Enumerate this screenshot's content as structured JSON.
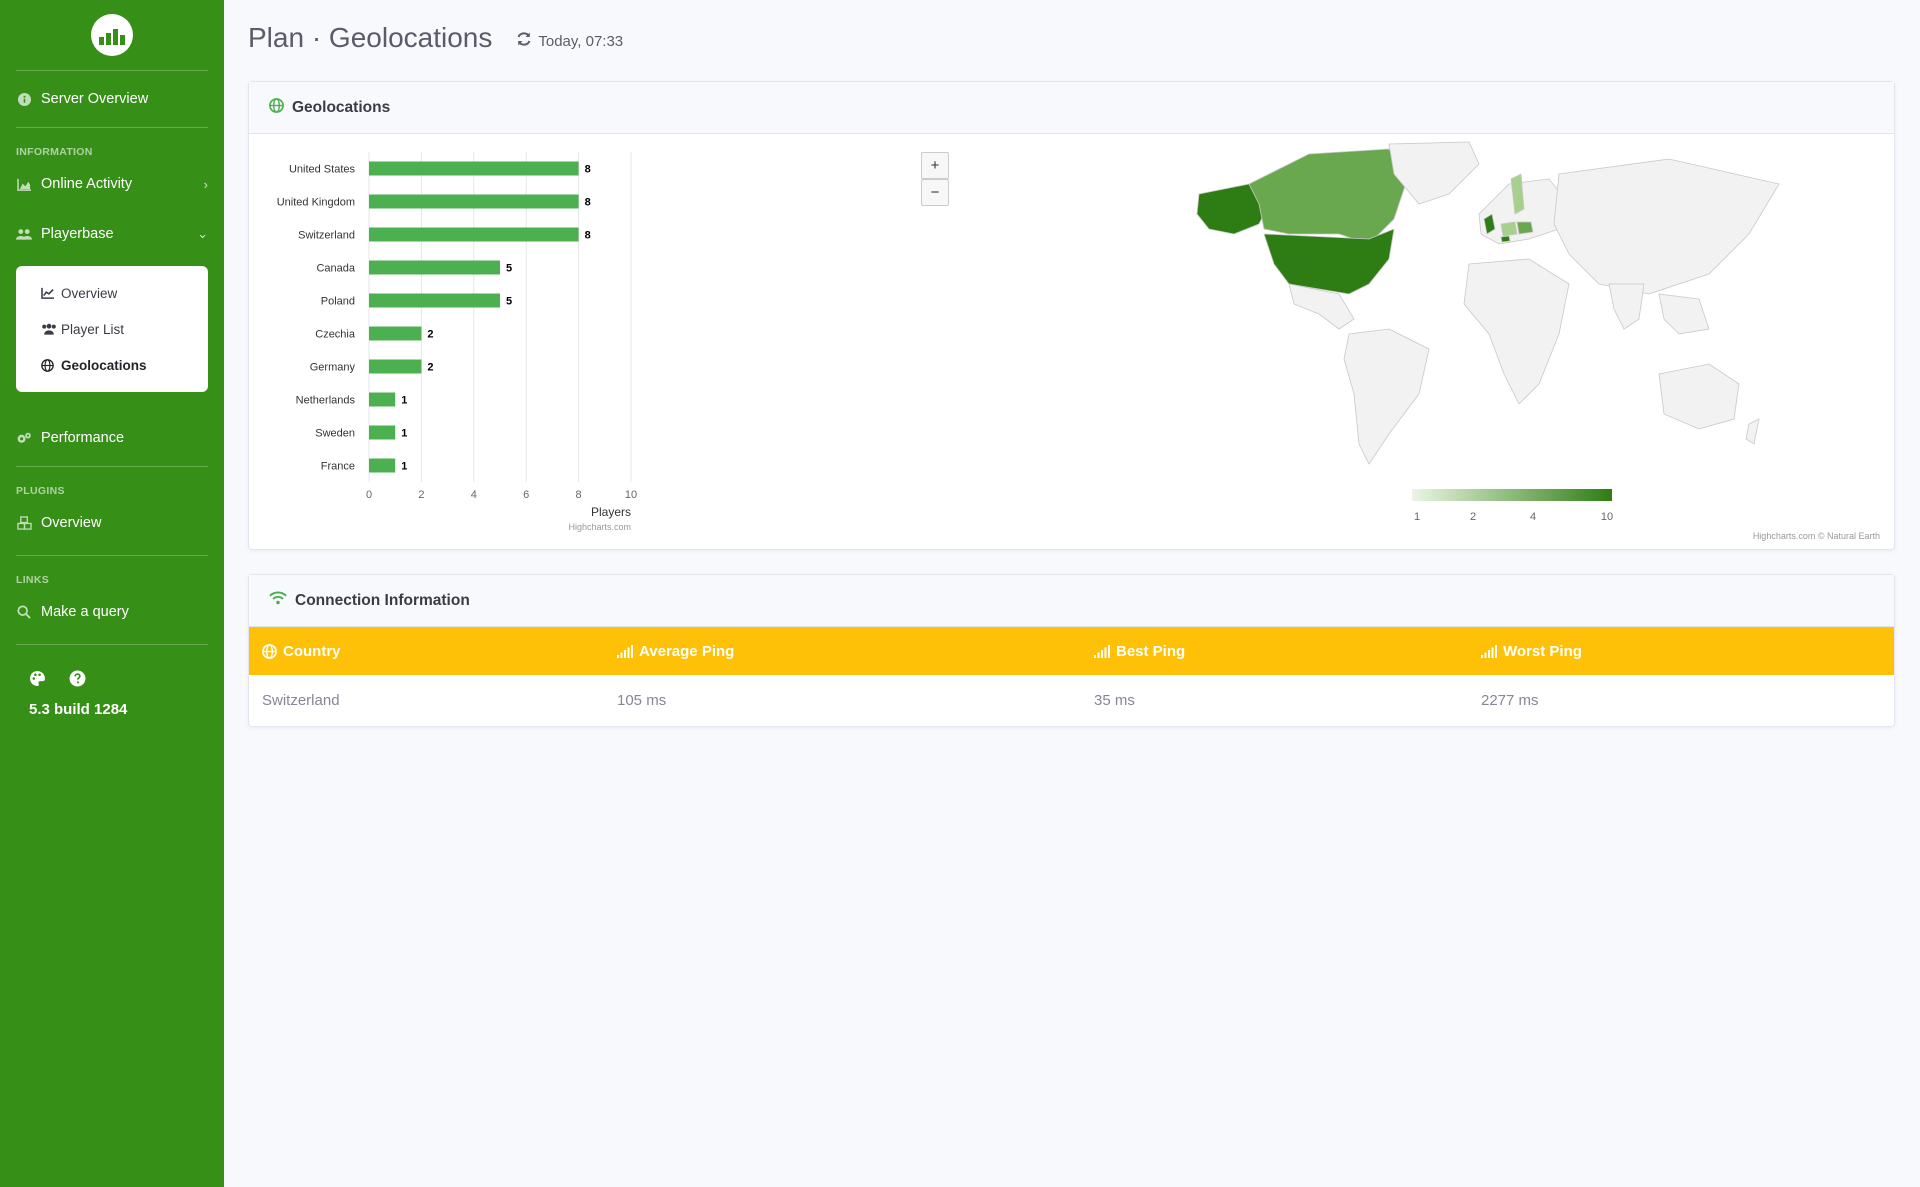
{
  "sidebar": {
    "items_top": [
      {
        "label": "Server Overview",
        "icon": "info-circle-icon"
      }
    ],
    "section_information": "INFORMATION",
    "online_activity": "Online Activity",
    "playerbase": "Playerbase",
    "playerbase_sub": [
      {
        "label": "Overview",
        "icon": "chart-line-icon"
      },
      {
        "label": "Player List",
        "icon": "users-icon"
      },
      {
        "label": "Geolocations",
        "icon": "globe-icon"
      }
    ],
    "performance": "Performance",
    "section_plugins": "PLUGINS",
    "plugins_overview": "Overview",
    "section_links": "LINKS",
    "make_query": "Make a query",
    "version": "5.3 build 1284"
  },
  "header": {
    "title": "Plan · Geolocations",
    "refresh_text": "Today, 07:33"
  },
  "geo_card": {
    "title": "Geolocations",
    "zoom_in": "+",
    "zoom_out": "−",
    "credit_bar": "Highcharts.com",
    "credit_map": "Highcharts.com © Natural Earth",
    "legend_ticks": [
      "1",
      "2",
      "4",
      "10"
    ]
  },
  "chart_data": {
    "type": "bar",
    "categories": [
      "United States",
      "United Kingdom",
      "Switzerland",
      "Canada",
      "Poland",
      "Czechia",
      "Germany",
      "Netherlands",
      "Sweden",
      "France"
    ],
    "values": [
      8,
      8,
      8,
      5,
      5,
      2,
      2,
      1,
      1,
      1
    ],
    "xlabel": "Players",
    "xlim": [
      0,
      10
    ],
    "xticks": [
      0,
      2,
      4,
      6,
      8,
      10
    ],
    "color": "#4caf50",
    "grid": true
  },
  "map_colors": {
    "max": "#2e7d14",
    "mid": "#6aa84f",
    "low": "#a8d08d",
    "empty": "#f2f2f2"
  },
  "connection": {
    "title": "Connection Information",
    "headers": [
      "Country",
      "Average Ping",
      "Best Ping",
      "Worst Ping"
    ],
    "rows": [
      [
        "Switzerland",
        "105 ms",
        "35 ms",
        "2277 ms"
      ]
    ]
  }
}
